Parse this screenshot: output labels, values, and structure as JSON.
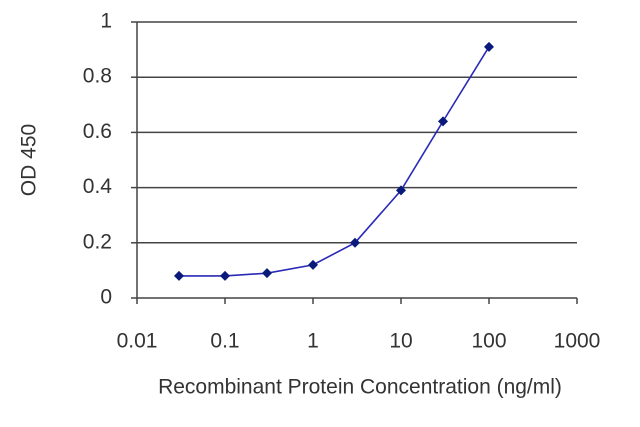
{
  "chart_data": {
    "type": "line",
    "x_label": "Recombinant Protein Concentration (ng/ml)",
    "y_label": "OD 450",
    "x": [
      0.03,
      0.1,
      0.3,
      1,
      3,
      10,
      30,
      100
    ],
    "series": [
      {
        "color": "#2a2ab8",
        "marker_color": "#0a1a7a",
        "values": [
          0.08,
          0.08,
          0.09,
          0.12,
          0.2,
          0.39,
          0.64,
          0.91
        ]
      }
    ],
    "xscale": "log",
    "xlim": [
      0.01,
      1000
    ],
    "xticks": [
      0.01,
      0.1,
      1,
      10,
      100,
      1000
    ],
    "ylim": [
      0,
      1
    ],
    "yticks": [
      0,
      0.2,
      0.4,
      0.6,
      0.8,
      1
    ],
    "grid": true
  }
}
